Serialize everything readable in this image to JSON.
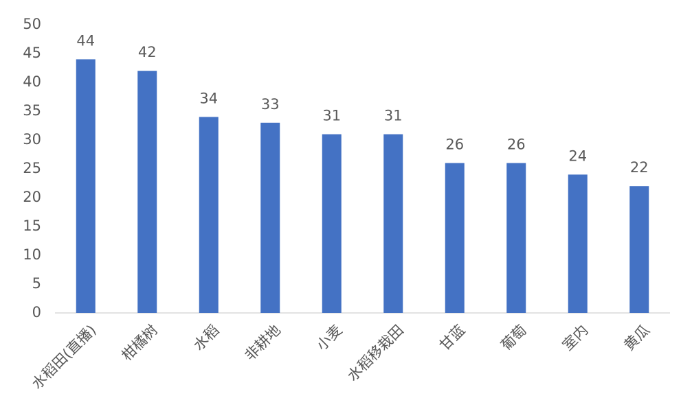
{
  "chart_data": {
    "type": "bar",
    "categories": [
      "水稻田(直播)",
      "柑橘树",
      "水稻",
      "非耕地",
      "小麦",
      "水稻移栽田",
      "甘蓝",
      "葡萄",
      "室内",
      "黄瓜"
    ],
    "values": [
      44,
      42,
      34,
      33,
      31,
      31,
      26,
      26,
      24,
      22
    ],
    "color": "#4472c4",
    "ylim": [
      0,
      50
    ],
    "yticks": [
      0,
      5,
      10,
      15,
      20,
      25,
      30,
      35,
      40,
      45,
      50
    ],
    "grid": false
  }
}
